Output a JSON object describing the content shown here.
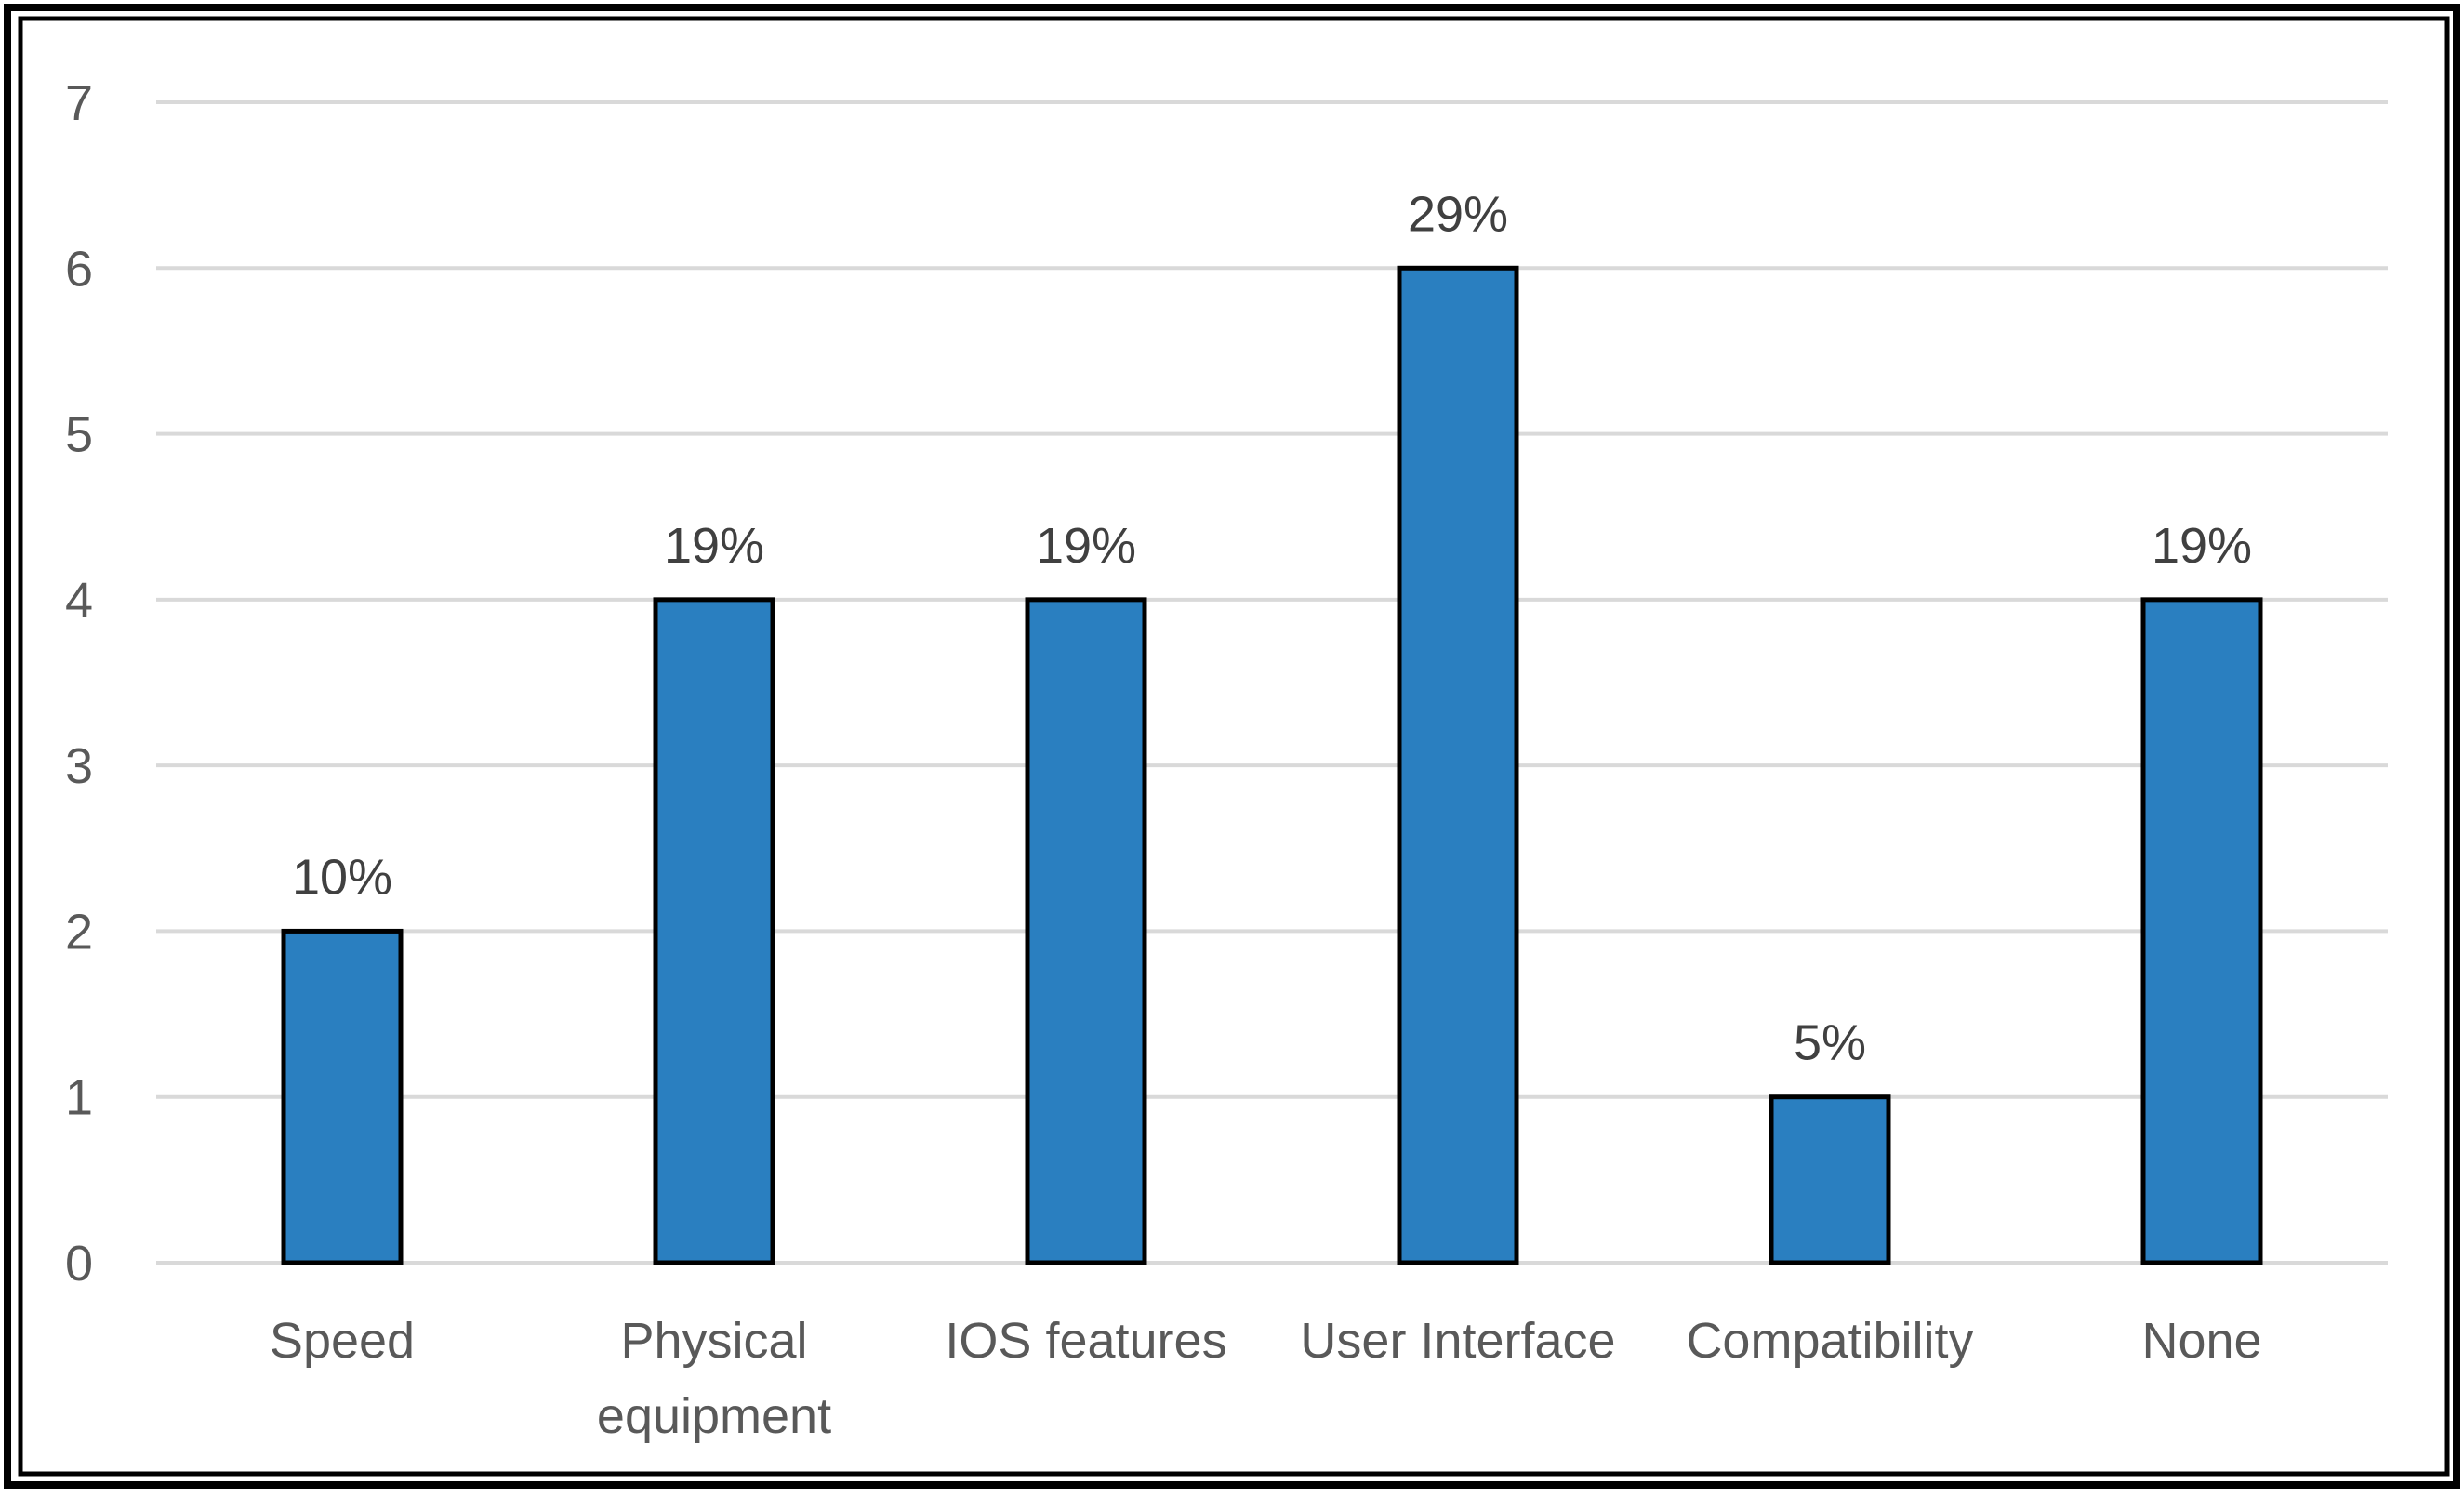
{
  "chart_data": {
    "type": "bar",
    "title": "",
    "xlabel": "",
    "ylabel": "",
    "categories": [
      [
        "Speed"
      ],
      [
        "Physical",
        "equipment"
      ],
      [
        "IOS features"
      ],
      [
        "User Interface"
      ],
      [
        "Compatibility"
      ],
      [
        "None"
      ]
    ],
    "values": [
      2,
      4,
      4,
      6,
      1,
      4
    ],
    "data_labels": [
      "10%",
      "19%",
      "19%",
      "29%",
      "5%",
      "19%"
    ],
    "y_ticks": [
      "0",
      "1",
      "2",
      "3",
      "4",
      "5",
      "6",
      "7"
    ],
    "ylim": [
      0,
      7
    ],
    "grid": true,
    "legend": "none",
    "colors": {
      "bar_fill": "#2a7fc0",
      "bar_stroke": "#000000",
      "grid": "#d9d9d9",
      "text": "#595959",
      "frame": "#000000"
    }
  }
}
